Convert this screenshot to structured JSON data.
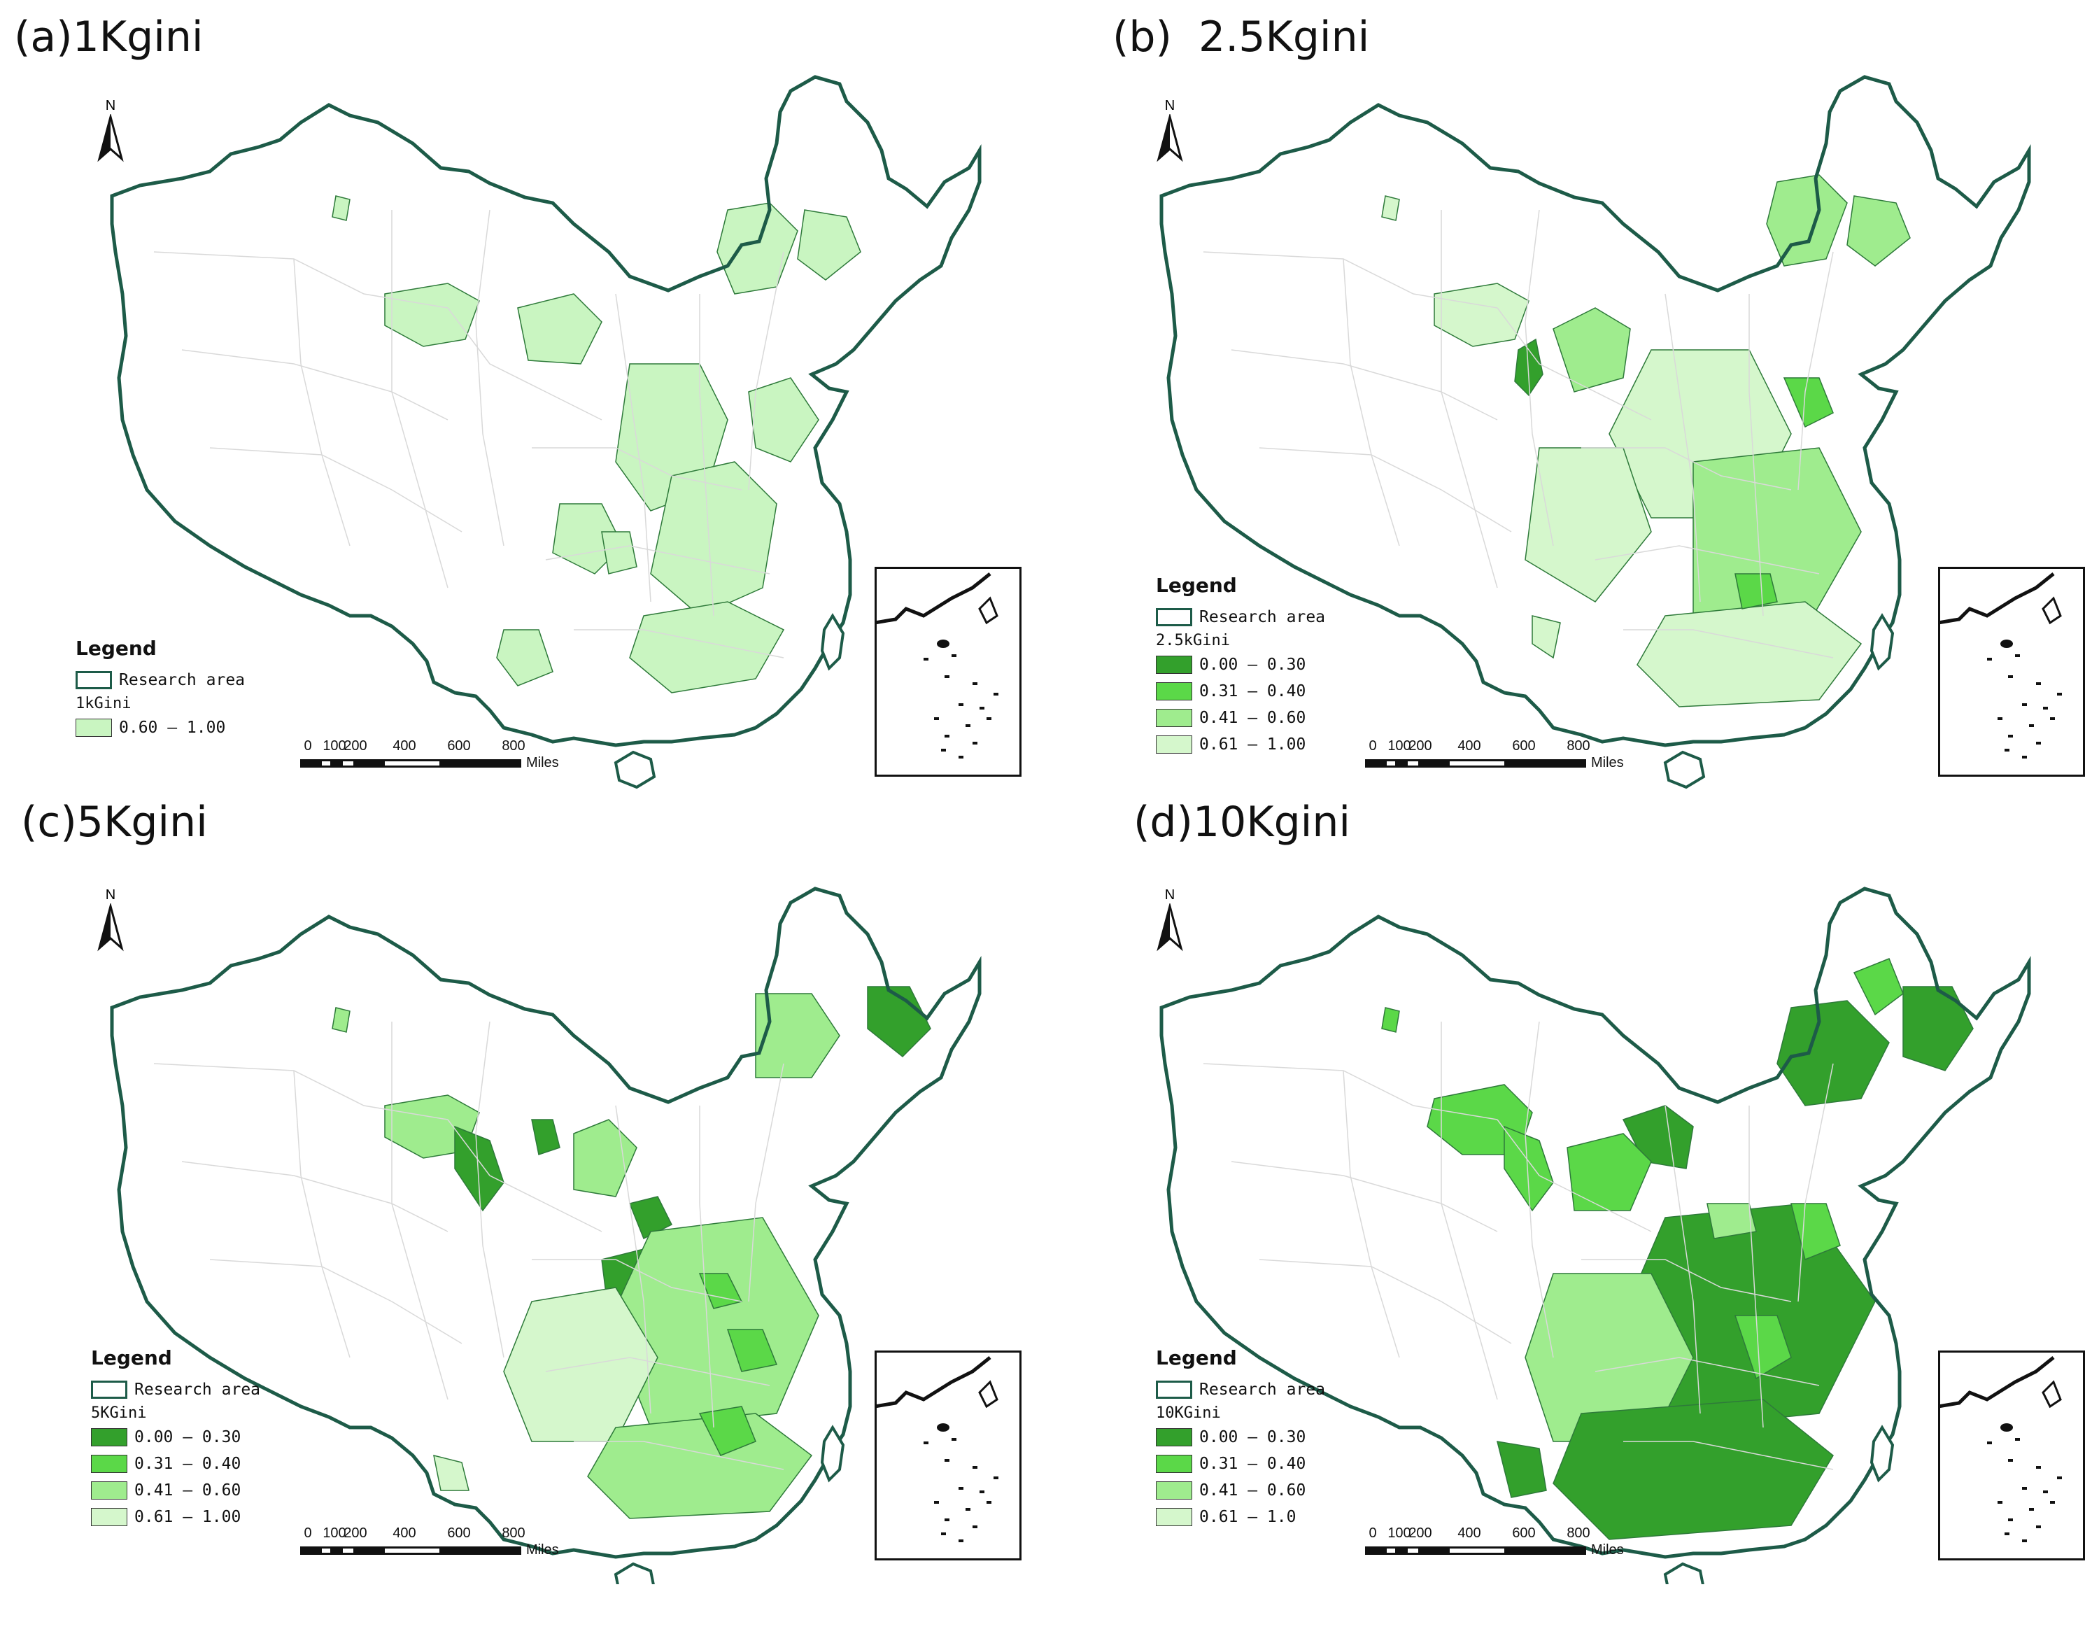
{
  "panels": [
    {
      "title": "(a)1Kgini",
      "legend": {
        "title": "Legend",
        "research_area": "Research area",
        "field": "1kGini",
        "classes": [
          {
            "label": "0.60 — 1.00",
            "color": "#c9f5c1"
          }
        ]
      }
    },
    {
      "title": "(b)  2.5Kgini",
      "legend": {
        "title": "Legend",
        "research_area": "Research area",
        "field": "2.5kGini",
        "classes": [
          {
            "label": "0.00 — 0.30",
            "color": "#33a02c"
          },
          {
            "label": "0.31 — 0.40",
            "color": "#5bd848"
          },
          {
            "label": "0.41 — 0.60",
            "color": "#9fec8e"
          },
          {
            "label": "0.61 — 1.00",
            "color": "#d5f7cc"
          }
        ]
      }
    },
    {
      "title": "(c)5Kgini",
      "legend": {
        "title": "Legend",
        "research_area": "Research area",
        "field": "5KGini",
        "classes": [
          {
            "label": "0.00 — 0.30",
            "color": "#33a02c"
          },
          {
            "label": "0.31 — 0.40",
            "color": "#5bd848"
          },
          {
            "label": "0.41 — 0.60",
            "color": "#9fec8e"
          },
          {
            "label": "0.61 — 1.00",
            "color": "#d5f7cc"
          }
        ]
      }
    },
    {
      "title": "(d)10Kgini",
      "legend": {
        "title": "Legend",
        "research_area": "Research area",
        "field": "10KGini",
        "classes": [
          {
            "label": "0.00 — 0.30",
            "color": "#33a02c"
          },
          {
            "label": "0.31 — 0.40",
            "color": "#5bd848"
          },
          {
            "label": "0.41 — 0.60",
            "color": "#9fec8e"
          },
          {
            "label": "0.61 — 1.0",
            "color": "#d5f7cc"
          }
        ]
      }
    }
  ],
  "scalebar": {
    "ticks": [
      "0",
      "100",
      "200",
      "400",
      "600",
      "800"
    ],
    "units": "Miles"
  },
  "north_label": "N",
  "colors": {
    "boundary": "#1d5b48",
    "internal_lines": "#d9d9d9",
    "fill_light": "#d5f7cc"
  }
}
